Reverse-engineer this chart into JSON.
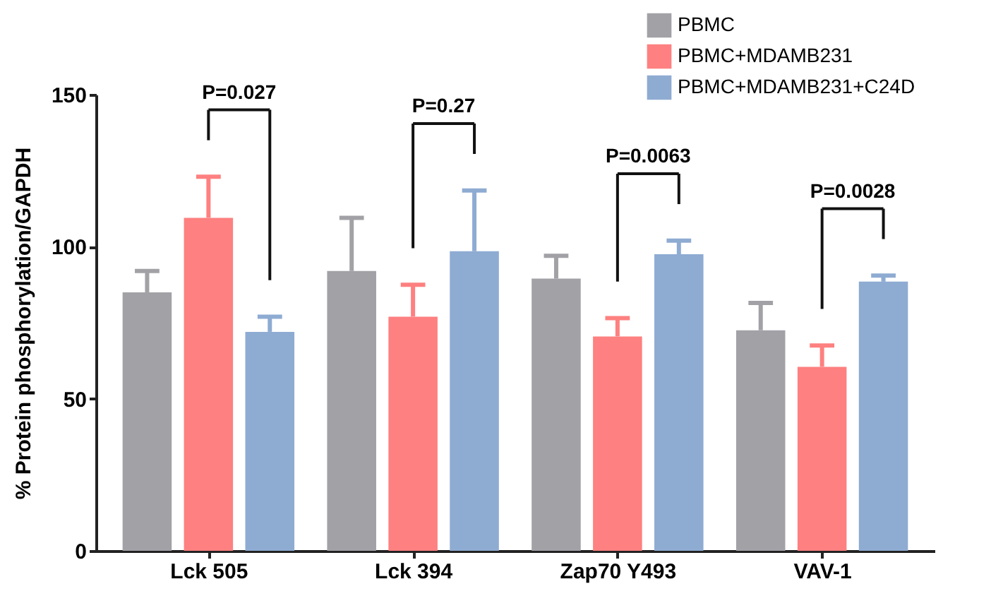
{
  "chart_data": {
    "type": "bar",
    "ylabel": "% Protein phosphorylation/GAPDH",
    "categories": [
      "Lck 505",
      "Lck 394",
      "Zap70 Y493",
      "VAV-1"
    ],
    "series": [
      {
        "name": "PBMC",
        "color": "#a2a1a6",
        "values": [
          85,
          92,
          89.5,
          72.5
        ],
        "errors": [
          [
            85,
            92
          ],
          [
            92,
            109.5
          ],
          [
            89.5,
            97
          ],
          [
            72.5,
            81.5
          ]
        ]
      },
      {
        "name": "PBMC+MDAMB231",
        "color": "#fe8080",
        "values": [
          109.5,
          77,
          70.5,
          60.5
        ],
        "errors": [
          [
            109.5,
            123
          ],
          [
            77,
            87.5
          ],
          [
            70.5,
            76.5
          ],
          [
            60.5,
            67.5
          ]
        ]
      },
      {
        "name": "PBMC+MDAMB231+C24D",
        "color": "#8eabd2",
        "values": [
          72,
          98.5,
          97.5,
          88.5
        ],
        "errors": [
          [
            72,
            77
          ],
          [
            98.5,
            118.5
          ],
          [
            97.5,
            102
          ],
          [
            88.5,
            90.5
          ]
        ]
      }
    ],
    "ylim": [
      0,
      150
    ],
    "yticks": [
      0,
      50,
      100,
      150
    ],
    "grid": false,
    "legend": "top right",
    "annotations": [
      "P=0.027",
      "P=0.27",
      "P=0.0063",
      "P=0.0028"
    ]
  }
}
